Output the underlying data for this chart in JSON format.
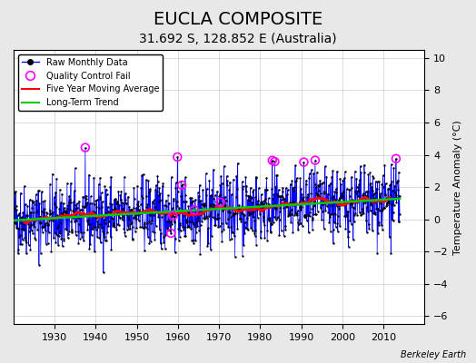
{
  "title": "EUCLA COMPOSITE",
  "subtitle": "31.692 S, 128.852 E (Australia)",
  "credit": "Berkeley Earth",
  "ylabel": "Temperature Anomaly (°C)",
  "xlim": [
    1920,
    2020
  ],
  "ylim": [
    -6.5,
    10.5
  ],
  "yticks": [
    -6,
    -4,
    -2,
    0,
    2,
    4,
    6,
    8,
    10
  ],
  "xticks": [
    1930,
    1940,
    1950,
    1960,
    1970,
    1980,
    1990,
    2000,
    2010
  ],
  "start_year": 1920.0,
  "end_year": 2014.0,
  "raw_color": "#0000ff",
  "ma_color": "#ff0000",
  "trend_color": "#00cc00",
  "qc_color": "#ff00ff",
  "bg_color": "#e8e8e8",
  "plot_bg": "#ffffff",
  "title_fontsize": 14,
  "subtitle_fontsize": 10,
  "seed": 42
}
